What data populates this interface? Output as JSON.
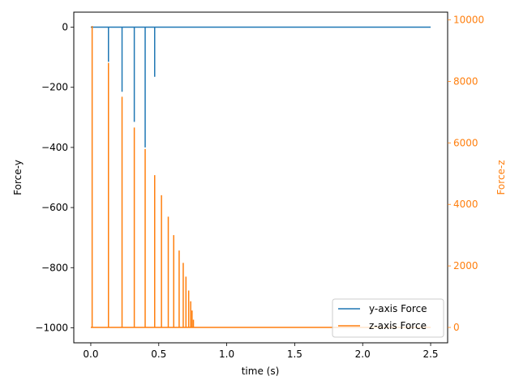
{
  "chart_data": {
    "type": "line",
    "xlabel": "time (s)",
    "ylabel_left": "Force-y",
    "ylabel_right": "Force-z",
    "xlim": [
      -0.125,
      2.625
    ],
    "ylim_left": [
      -1050,
      50
    ],
    "ylim_right": [
      -500,
      10250
    ],
    "xticks": [
      0.0,
      0.5,
      1.0,
      1.5,
      2.0,
      2.5
    ],
    "xtick_labels": [
      "0.0",
      "0.5",
      "1.0",
      "1.5",
      "2.0",
      "2.5"
    ],
    "yticks_left": [
      0,
      -200,
      -400,
      -600,
      -800,
      -1000
    ],
    "ytick_labels_left": [
      "0",
      "−200",
      "−400",
      "−600",
      "−800",
      "−1000"
    ],
    "yticks_right": [
      0,
      2000,
      4000,
      6000,
      8000,
      10000
    ],
    "ytick_labels_right": [
      "0",
      "2000",
      "4000",
      "6000",
      "8000",
      "10000"
    ],
    "grid": false,
    "legend_position": "bottom-right",
    "colors": {
      "y_series": "#1f77b4",
      "z_series": "#ff7f0e"
    },
    "series": [
      {
        "name": "y-axis Force",
        "axis": "left",
        "x": [
          0.0,
          0.13,
          0.13,
          0.13,
          0.23,
          0.23,
          0.23,
          0.32,
          0.32,
          0.32,
          0.4,
          0.4,
          0.4,
          0.47,
          0.47,
          0.47,
          2.5
        ],
        "y": [
          0,
          0,
          -115,
          0,
          0,
          -215,
          0,
          0,
          -315,
          0,
          0,
          -400,
          0,
          0,
          -165,
          0,
          0
        ]
      },
      {
        "name": "z-axis Force",
        "axis": "right",
        "x": [
          0.0,
          0.01,
          0.01,
          0.01,
          0.13,
          0.13,
          0.13,
          0.23,
          0.23,
          0.23,
          0.32,
          0.32,
          0.32,
          0.4,
          0.4,
          0.4,
          0.47,
          0.47,
          0.47,
          0.52,
          0.52,
          0.52,
          0.57,
          0.57,
          0.57,
          0.61,
          0.61,
          0.61,
          0.65,
          0.65,
          0.65,
          0.68,
          0.68,
          0.68,
          0.7,
          0.7,
          0.7,
          0.72,
          0.72,
          0.72,
          0.735,
          0.735,
          0.735,
          0.745,
          0.745,
          0.745,
          0.755,
          0.755,
          0.755,
          2.5
        ],
        "y": [
          0,
          0,
          9800,
          0,
          0,
          8600,
          0,
          0,
          7500,
          0,
          0,
          6500,
          0,
          0,
          5800,
          0,
          0,
          4950,
          0,
          0,
          4300,
          0,
          0,
          3600,
          0,
          0,
          3000,
          0,
          0,
          2500,
          0,
          0,
          2100,
          0,
          0,
          1650,
          0,
          0,
          1200,
          0,
          0,
          850,
          0,
          0,
          550,
          0,
          0,
          250,
          0,
          0
        ]
      }
    ]
  }
}
